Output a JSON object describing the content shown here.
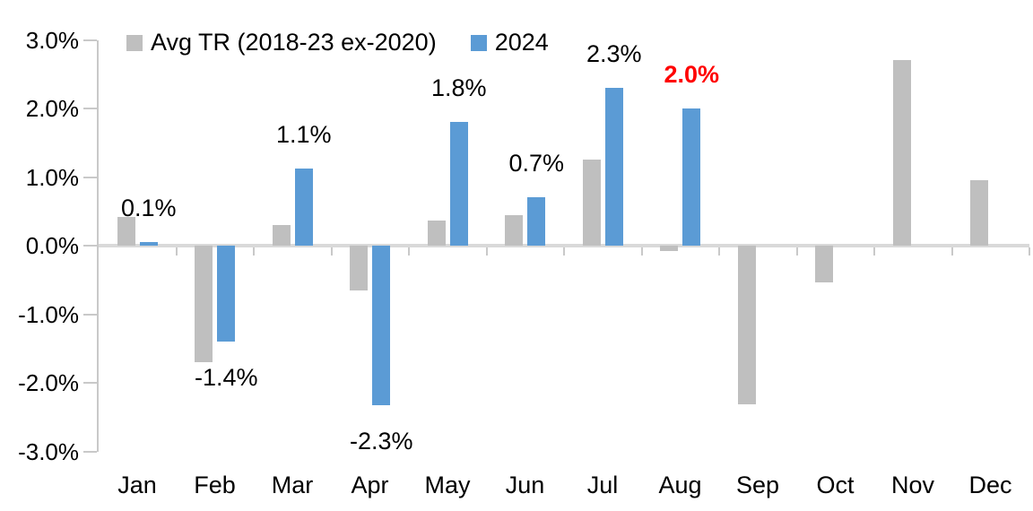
{
  "chart_data": {
    "type": "bar",
    "title": "",
    "categories": [
      "Jan",
      "Feb",
      "Mar",
      "Apr",
      "May",
      "Jun",
      "Jul",
      "Aug",
      "Sep",
      "Oct",
      "Nov",
      "Dec"
    ],
    "series": [
      {
        "name": "Avg TR (2018-23 ex-2020)",
        "color": "#BFBFBF",
        "values": [
          0.42,
          -1.7,
          0.3,
          -0.66,
          0.36,
          0.45,
          1.25,
          -0.08,
          -2.31,
          -0.54,
          2.7,
          0.96
        ]
      },
      {
        "name": "2024",
        "color": "#5B9BD5",
        "values": [
          0.05,
          -1.4,
          1.13,
          -2.33,
          1.8,
          0.7,
          2.3,
          2.0,
          null,
          null,
          null,
          null
        ],
        "data_labels": [
          "0.1%",
          "-1.4%",
          "1.1%",
          "-2.3%",
          "1.8%",
          "0.7%",
          "2.3%",
          "2.0%",
          "",
          "",
          "",
          ""
        ],
        "data_label_colors": [
          "#000000",
          "#000000",
          "#000000",
          "#000000",
          "#000000",
          "#000000",
          "#000000",
          "#FF0000",
          "",
          "",
          "",
          ""
        ],
        "data_label_bold": [
          false,
          false,
          false,
          false,
          false,
          false,
          false,
          true,
          false,
          false,
          false,
          false
        ]
      }
    ],
    "ylim": [
      -3,
      3
    ],
    "y_ticks": [
      "3.0%",
      "2.0%",
      "1.0%",
      "0.0%",
      "-1.0%",
      "-2.0%",
      "-3.0%"
    ],
    "grid": false,
    "legend_position": "top",
    "axis_color": "#C9C9C9",
    "zero_line_color": "#D9D9D9",
    "highlight_color": "#FF0000"
  }
}
